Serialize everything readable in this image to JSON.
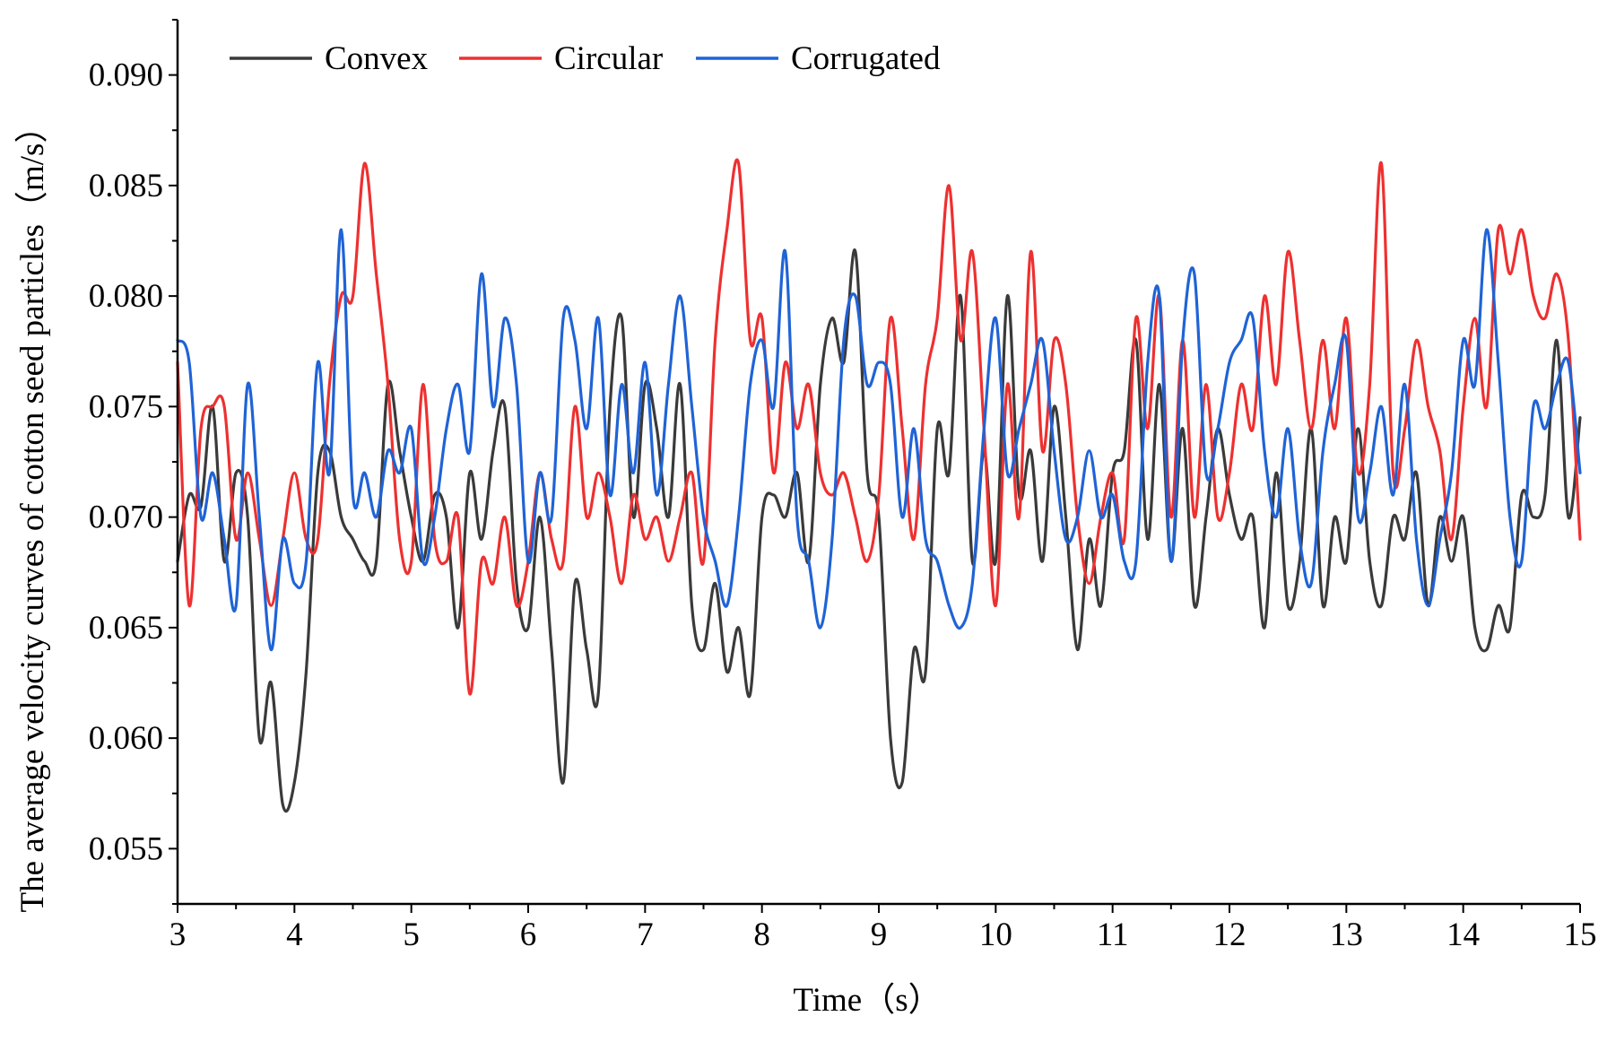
{
  "chart_data": {
    "type": "line",
    "title": "",
    "xlabel": "Time（s）",
    "ylabel": "The average velocity curves of cotton seed particles（m/s）",
    "xlim": [
      3,
      15
    ],
    "ylim": [
      0.0525,
      0.0925
    ],
    "xticks": [
      3,
      4,
      5,
      6,
      7,
      8,
      9,
      10,
      11,
      12,
      13,
      14,
      15
    ],
    "xtick_labels": [
      "3",
      "4",
      "5",
      "6",
      "7",
      "8",
      "9",
      "10",
      "11",
      "12",
      "13",
      "14",
      "15"
    ],
    "yticks": [
      0.055,
      0.06,
      0.065,
      0.07,
      0.075,
      0.08,
      0.085,
      0.09
    ],
    "ytick_labels": [
      "0.055",
      "0.060",
      "0.065",
      "0.070",
      "0.075",
      "0.080",
      "0.085",
      "0.090"
    ],
    "grid": false,
    "legend_position": "top-left",
    "x": [
      3.0,
      3.1,
      3.2,
      3.3,
      3.4,
      3.5,
      3.6,
      3.7,
      3.8,
      3.9,
      4.0,
      4.1,
      4.2,
      4.3,
      4.4,
      4.5,
      4.6,
      4.7,
      4.8,
      4.9,
      5.0,
      5.1,
      5.2,
      5.3,
      5.4,
      5.5,
      5.6,
      5.7,
      5.8,
      5.9,
      6.0,
      6.1,
      6.2,
      6.3,
      6.4,
      6.5,
      6.6,
      6.7,
      6.8,
      6.9,
      7.0,
      7.1,
      7.2,
      7.3,
      7.4,
      7.5,
      7.6,
      7.7,
      7.8,
      7.9,
      8.0,
      8.1,
      8.2,
      8.3,
      8.4,
      8.5,
      8.6,
      8.7,
      8.8,
      8.9,
      9.0,
      9.1,
      9.2,
      9.3,
      9.4,
      9.5,
      9.6,
      9.7,
      9.8,
      9.9,
      10.0,
      10.1,
      10.2,
      10.3,
      10.4,
      10.5,
      10.6,
      10.7,
      10.8,
      10.9,
      11.0,
      11.1,
      11.2,
      11.3,
      11.4,
      11.5,
      11.6,
      11.7,
      11.8,
      11.9,
      12.0,
      12.1,
      12.2,
      12.3,
      12.4,
      12.5,
      12.6,
      12.7,
      12.8,
      12.9,
      13.0,
      13.1,
      13.2,
      13.3,
      13.4,
      13.5,
      13.6,
      13.7,
      13.8,
      13.9,
      14.0,
      14.1,
      14.2,
      14.3,
      14.4,
      14.5,
      14.6,
      14.7,
      14.8,
      14.9,
      15.0
    ],
    "series": [
      {
        "name": "Convex",
        "color": "#3a3a3a",
        "values": [
          0.068,
          0.071,
          0.0705,
          0.075,
          0.068,
          0.072,
          0.07,
          0.06,
          0.0625,
          0.057,
          0.058,
          0.063,
          0.072,
          0.073,
          0.07,
          0.069,
          0.068,
          0.068,
          0.076,
          0.073,
          0.07,
          0.068,
          0.071,
          0.07,
          0.065,
          0.072,
          0.069,
          0.073,
          0.075,
          0.067,
          0.065,
          0.07,
          0.064,
          0.058,
          0.067,
          0.064,
          0.062,
          0.075,
          0.079,
          0.07,
          0.076,
          0.074,
          0.07,
          0.076,
          0.066,
          0.064,
          0.067,
          0.063,
          0.065,
          0.062,
          0.07,
          0.071,
          0.07,
          0.072,
          0.068,
          0.076,
          0.079,
          0.077,
          0.082,
          0.072,
          0.07,
          0.06,
          0.058,
          0.064,
          0.063,
          0.074,
          0.072,
          0.08,
          0.068,
          0.073,
          0.068,
          0.08,
          0.071,
          0.073,
          0.068,
          0.075,
          0.07,
          0.064,
          0.069,
          0.066,
          0.072,
          0.073,
          0.078,
          0.069,
          0.076,
          0.068,
          0.074,
          0.066,
          0.07,
          0.074,
          0.071,
          0.069,
          0.07,
          0.065,
          0.072,
          0.066,
          0.068,
          0.074,
          0.066,
          0.07,
          0.068,
          0.074,
          0.068,
          0.066,
          0.07,
          0.069,
          0.072,
          0.066,
          0.07,
          0.068,
          0.07,
          0.065,
          0.064,
          0.066,
          0.065,
          0.071,
          0.07,
          0.071,
          0.078,
          0.07,
          0.0745
        ]
      },
      {
        "name": "Circular",
        "color": "#ee3030",
        "values": [
          0.077,
          0.066,
          0.074,
          0.075,
          0.075,
          0.069,
          0.072,
          0.069,
          0.066,
          0.069,
          0.072,
          0.069,
          0.069,
          0.076,
          0.08,
          0.08,
          0.086,
          0.081,
          0.076,
          0.069,
          0.068,
          0.076,
          0.069,
          0.068,
          0.07,
          0.062,
          0.068,
          0.067,
          0.07,
          0.066,
          0.068,
          0.072,
          0.069,
          0.068,
          0.075,
          0.07,
          0.072,
          0.07,
          0.067,
          0.071,
          0.069,
          0.07,
          0.068,
          0.07,
          0.072,
          0.068,
          0.078,
          0.083,
          0.086,
          0.078,
          0.079,
          0.072,
          0.077,
          0.074,
          0.076,
          0.072,
          0.071,
          0.072,
          0.07,
          0.068,
          0.071,
          0.079,
          0.074,
          0.069,
          0.076,
          0.079,
          0.085,
          0.078,
          0.082,
          0.074,
          0.066,
          0.076,
          0.07,
          0.082,
          0.073,
          0.078,
          0.076,
          0.07,
          0.067,
          0.07,
          0.072,
          0.069,
          0.079,
          0.074,
          0.08,
          0.07,
          0.078,
          0.07,
          0.076,
          0.07,
          0.072,
          0.076,
          0.074,
          0.08,
          0.076,
          0.082,
          0.078,
          0.074,
          0.078,
          0.074,
          0.079,
          0.072,
          0.076,
          0.086,
          0.072,
          0.074,
          0.078,
          0.075,
          0.073,
          0.069,
          0.075,
          0.079,
          0.075,
          0.083,
          0.081,
          0.083,
          0.08,
          0.079,
          0.081,
          0.078,
          0.069
        ]
      },
      {
        "name": "Corrugated",
        "color": "#1f63d6",
        "values": [
          0.078,
          0.077,
          0.07,
          0.072,
          0.069,
          0.066,
          0.076,
          0.07,
          0.064,
          0.069,
          0.067,
          0.068,
          0.077,
          0.072,
          0.083,
          0.071,
          0.072,
          0.07,
          0.073,
          0.072,
          0.074,
          0.068,
          0.07,
          0.074,
          0.076,
          0.073,
          0.081,
          0.075,
          0.079,
          0.076,
          0.068,
          0.072,
          0.07,
          0.079,
          0.078,
          0.074,
          0.079,
          0.071,
          0.076,
          0.072,
          0.077,
          0.071,
          0.076,
          0.08,
          0.075,
          0.07,
          0.068,
          0.066,
          0.07,
          0.076,
          0.078,
          0.075,
          0.082,
          0.07,
          0.068,
          0.065,
          0.069,
          0.078,
          0.08,
          0.076,
          0.077,
          0.076,
          0.07,
          0.074,
          0.069,
          0.068,
          0.066,
          0.065,
          0.067,
          0.074,
          0.079,
          0.072,
          0.074,
          0.076,
          0.078,
          0.073,
          0.069,
          0.07,
          0.073,
          0.07,
          0.071,
          0.068,
          0.068,
          0.077,
          0.08,
          0.068,
          0.078,
          0.081,
          0.072,
          0.074,
          0.077,
          0.078,
          0.079,
          0.073,
          0.07,
          0.074,
          0.069,
          0.067,
          0.073,
          0.076,
          0.078,
          0.07,
          0.072,
          0.075,
          0.071,
          0.076,
          0.069,
          0.066,
          0.069,
          0.072,
          0.078,
          0.076,
          0.083,
          0.077,
          0.07,
          0.068,
          0.075,
          0.074,
          0.076,
          0.077,
          0.072
        ]
      }
    ]
  }
}
